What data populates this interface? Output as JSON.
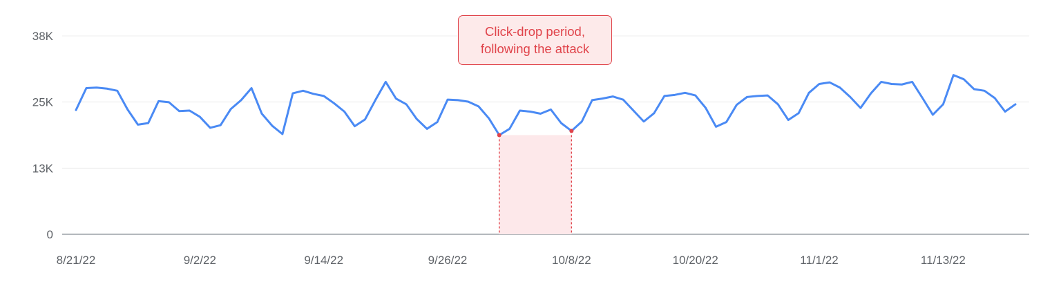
{
  "chart_data": {
    "type": "line",
    "y_ticks": [
      "0",
      "13K",
      "25K",
      "38K"
    ],
    "y_tick_values": [
      0,
      12667,
      25333,
      38000
    ],
    "ylim": [
      0,
      38000
    ],
    "x_tick_labels": [
      "8/21/22",
      "9/2/22",
      "9/14/22",
      "9/26/22",
      "10/8/22",
      "10/20/22",
      "11/1/22",
      "11/13/22"
    ],
    "x_start": "2022-08-21",
    "x_end": "2022-11-22",
    "grid": true,
    "series": [
      {
        "color": "#4a8af4",
        "values": [
          23800,
          28000,
          28100,
          27900,
          27500,
          23900,
          21000,
          21300,
          25500,
          25300,
          23600,
          23700,
          22500,
          20400,
          20900,
          24000,
          25700,
          28000,
          23100,
          20800,
          19200,
          27000,
          27500,
          26900,
          26500,
          25100,
          23500,
          20700,
          22000,
          25700,
          29200,
          26000,
          24900,
          22100,
          20200,
          21500,
          25800,
          25700,
          25400,
          24500,
          22200,
          19000,
          20200,
          23700,
          23500,
          23100,
          23900,
          21300,
          19800,
          21600,
          25700,
          26000,
          26400,
          25800,
          23700,
          21600,
          23200,
          26500,
          26700,
          27100,
          26600,
          24200,
          20600,
          21500,
          24800,
          26300,
          26500,
          26600,
          24900,
          21900,
          23200,
          27100,
          28800,
          29100,
          28100,
          26300,
          24200,
          27000,
          29200,
          28800,
          28700,
          29200,
          26100,
          22900,
          24900,
          30500,
          29700,
          27800,
          27500,
          26100,
          23500,
          24900
        ]
      }
    ],
    "highlight": {
      "start_index": 41,
      "end_index": 48,
      "color": "#e0434a",
      "fill": "#fde8ea",
      "label_lines": [
        "Click-drop period,",
        "following the attack"
      ]
    }
  }
}
